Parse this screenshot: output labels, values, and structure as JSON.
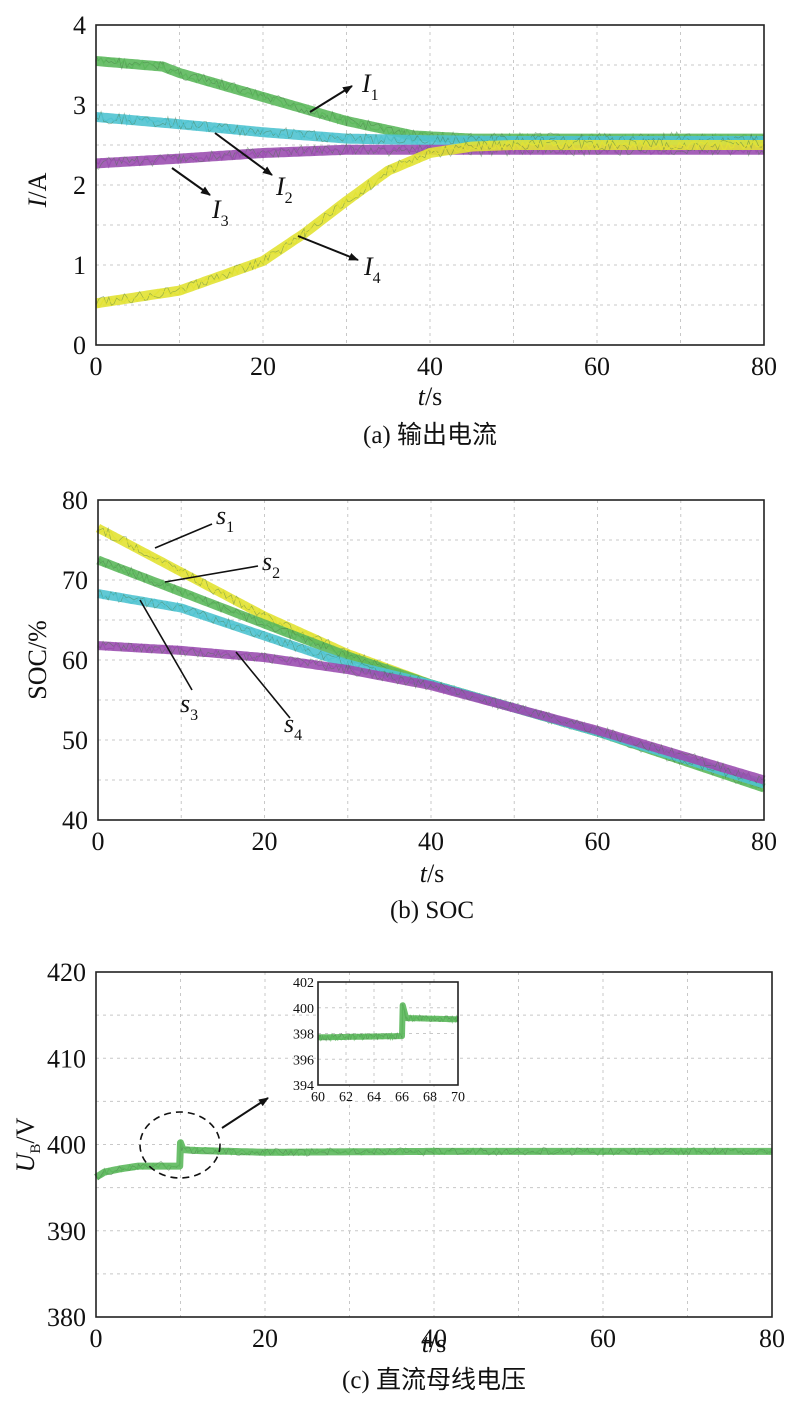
{
  "charts": [
    {
      "id": "a",
      "caption": "(a) 输出电流",
      "ylabel_main": "I",
      "ylabel_unit": "/A",
      "xlabel_main": "t",
      "xlabel_unit": "/s",
      "xticks": [
        "0",
        "20",
        "40",
        "60",
        "80"
      ],
      "yticks": [
        "0",
        "1",
        "2",
        "3",
        "4"
      ],
      "annotations": [
        {
          "main": "I",
          "sub": "1"
        },
        {
          "main": "I",
          "sub": "2"
        },
        {
          "main": "I",
          "sub": "3"
        },
        {
          "main": "I",
          "sub": "4"
        }
      ]
    },
    {
      "id": "b",
      "caption": "(b) SOC",
      "ylabel_main": "SOC/%",
      "ylabel_unit": "",
      "xlabel_main": "t",
      "xlabel_unit": "/s",
      "xticks": [
        "0",
        "20",
        "40",
        "60",
        "80"
      ],
      "yticks": [
        "40",
        "50",
        "60",
        "70",
        "80"
      ],
      "annotations": [
        {
          "main": "s",
          "sub": "1"
        },
        {
          "main": "s",
          "sub": "2"
        },
        {
          "main": "s",
          "sub": "3"
        },
        {
          "main": "s",
          "sub": "4"
        }
      ]
    },
    {
      "id": "c",
      "caption": "(c) 直流母线电压",
      "ylabel_main": "U",
      "ylabel_sub": "B",
      "ylabel_unit": "/V",
      "xlabel_main": "t",
      "xlabel_unit": "/s",
      "xticks": [
        "0",
        "20",
        "40",
        "60",
        "80"
      ],
      "yticks": [
        "380",
        "390",
        "400",
        "410",
        "420"
      ],
      "inset_xticks": [
        "60",
        "62",
        "64",
        "66",
        "68",
        "70"
      ],
      "inset_yticks": [
        "394",
        "396",
        "398",
        "400",
        "402"
      ]
    }
  ],
  "colors": {
    "green": "#5cb85c",
    "cyan": "#4fc3d0",
    "purple": "#9b4fb0",
    "yellow": "#e2e233"
  },
  "chart_data": [
    {
      "type": "line",
      "xlim": [
        0,
        80
      ],
      "ylim": [
        0,
        4
      ],
      "grid": true,
      "series": [
        {
          "name": "I1",
          "color": "green",
          "x": [
            0,
            8,
            10,
            20,
            30,
            38,
            45,
            80
          ],
          "y": [
            3.55,
            3.48,
            3.4,
            3.1,
            2.8,
            2.62,
            2.58,
            2.58
          ]
        },
        {
          "name": "I2",
          "color": "cyan",
          "x": [
            0,
            10,
            20,
            30,
            40,
            50,
            80
          ],
          "y": [
            2.85,
            2.76,
            2.66,
            2.58,
            2.56,
            2.55,
            2.55
          ]
        },
        {
          "name": "I3",
          "color": "purple",
          "x": [
            0,
            10,
            20,
            30,
            40,
            80
          ],
          "y": [
            2.27,
            2.33,
            2.4,
            2.44,
            2.44,
            2.44
          ]
        },
        {
          "name": "I4",
          "color": "yellow",
          "x": [
            0,
            10,
            20,
            25,
            30,
            35,
            40,
            45,
            50,
            80
          ],
          "y": [
            0.52,
            0.68,
            1.05,
            1.4,
            1.8,
            2.18,
            2.4,
            2.48,
            2.5,
            2.5
          ]
        }
      ]
    },
    {
      "type": "line",
      "xlim": [
        0,
        80
      ],
      "ylim": [
        40,
        80
      ],
      "grid": true,
      "series": [
        {
          "name": "s1",
          "color": "yellow",
          "x": [
            0,
            10,
            20,
            30,
            40,
            60,
            80
          ],
          "y": [
            76.5,
            71.0,
            65.5,
            60.8,
            57.0,
            51.0,
            44.5
          ]
        },
        {
          "name": "s2",
          "color": "green",
          "x": [
            0,
            10,
            20,
            30,
            40,
            60,
            80
          ],
          "y": [
            72.5,
            68.5,
            64.5,
            60.5,
            57.0,
            51.0,
            44.0
          ]
        },
        {
          "name": "s3",
          "color": "cyan",
          "x": [
            0,
            10,
            20,
            30,
            40,
            60,
            80
          ],
          "y": [
            68.3,
            66.5,
            63.0,
            59.5,
            57.0,
            51.0,
            44.5
          ]
        },
        {
          "name": "s4",
          "color": "purple",
          "x": [
            0,
            10,
            20,
            30,
            40,
            60,
            80
          ],
          "y": [
            61.8,
            61.2,
            60.3,
            58.8,
            56.8,
            51.2,
            45.0
          ]
        }
      ]
    },
    {
      "type": "line",
      "xlim": [
        0,
        80
      ],
      "ylim": [
        380,
        420
      ],
      "grid": true,
      "series": [
        {
          "name": "UB",
          "color": "green",
          "x": [
            0,
            1,
            3,
            5,
            9.9,
            10,
            10.3,
            12,
            20,
            40,
            60,
            80
          ],
          "y": [
            396.2,
            396.8,
            397.2,
            397.5,
            397.5,
            400.2,
            399.4,
            399.3,
            399.1,
            399.2,
            399.2,
            399.2
          ]
        }
      ],
      "inset": {
        "xlim": [
          60,
          70
        ],
        "ylim": [
          394,
          402
        ],
        "series": [
          {
            "name": "UB",
            "color": "green",
            "x": [
              60,
              66,
              66.05,
              66.3,
              70
            ],
            "y": [
              397.7,
              397.8,
              400.2,
              399.2,
              399.1
            ]
          }
        ]
      }
    }
  ]
}
